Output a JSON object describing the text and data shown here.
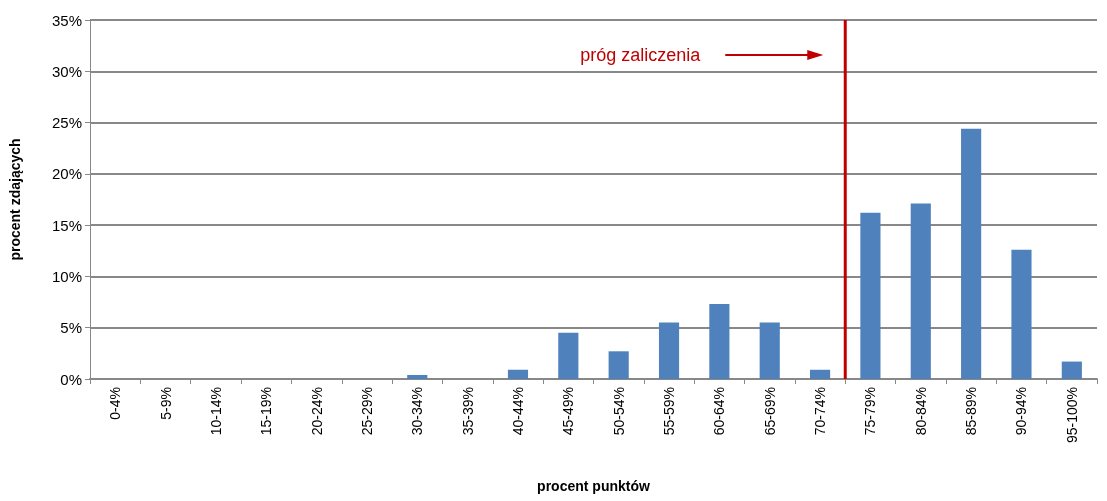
{
  "chart_data": {
    "type": "bar",
    "xlabel": "procent punktów",
    "ylabel": "procent zdających",
    "categories": [
      "0-4%",
      "5-9%",
      "10-14%",
      "15-19%",
      "20-24%",
      "25-29%",
      "30-34%",
      "35-39%",
      "40-44%",
      "45-49%",
      "50-54%",
      "55-59%",
      "60-64%",
      "65-69%",
      "70-74%",
      "75-79%",
      "80-84%",
      "85-89%",
      "90-94%",
      "95-100%"
    ],
    "values": [
      0,
      0,
      0,
      0,
      0,
      0,
      0.4,
      0,
      0.9,
      4.5,
      2.7,
      5.5,
      7.3,
      5.5,
      0.9,
      16.2,
      17.1,
      24.4,
      12.6,
      1.7
    ],
    "color": "#4f81bd",
    "ylim": [
      0,
      35
    ],
    "yticks": [
      {
        "value": 0,
        "label": "0%"
      },
      {
        "value": 5,
        "label": "5%"
      },
      {
        "value": 10,
        "label": "10%"
      },
      {
        "value": 15,
        "label": "15%"
      },
      {
        "value": 20,
        "label": "20%"
      },
      {
        "value": 25,
        "label": "25%"
      },
      {
        "value": 30,
        "label": "30%"
      },
      {
        "value": 35,
        "label": "35%"
      }
    ],
    "grid": "y",
    "ref_lines": [
      {
        "axis": "x",
        "value": "75-79%",
        "label": "próg zaliczenia",
        "color": "#c00000"
      }
    ]
  }
}
